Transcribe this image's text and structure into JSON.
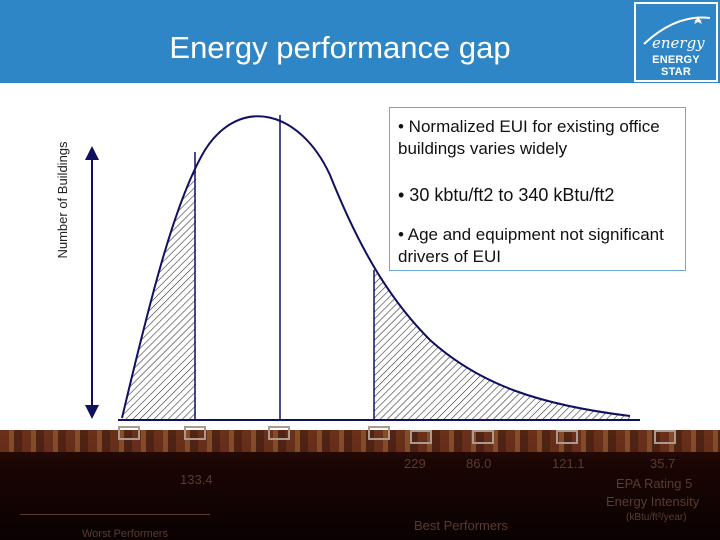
{
  "header": {
    "title": "Energy performance gap",
    "logo_text": "ENERGY STAR",
    "logo_script": "energy",
    "background": "#2f86c6"
  },
  "callout": {
    "bullet1": "• Normalized EUI for existing office buildings varies widely",
    "bullet2": "• 30 kbtu/ft2 to 340 kBtu/ft2",
    "bullet3": "• Age and equipment not significant drivers of EUI"
  },
  "diagram": {
    "y_axis_label": "Number of Buildings"
  },
  "bottom": {
    "ticks": [
      "229",
      "86.0",
      "121.1",
      "35.7",
      "133.4"
    ],
    "rating_label": "EPA Rating 5",
    "intensity_label": "Energy Intensity",
    "unit_label": "(kBtu/ft²/year)",
    "best_label": "Best Performers",
    "worst_label": "Worst Performers"
  },
  "colors": {
    "curve": "#101060",
    "hatch": "#333333",
    "bottom_band": "#1a0503"
  }
}
